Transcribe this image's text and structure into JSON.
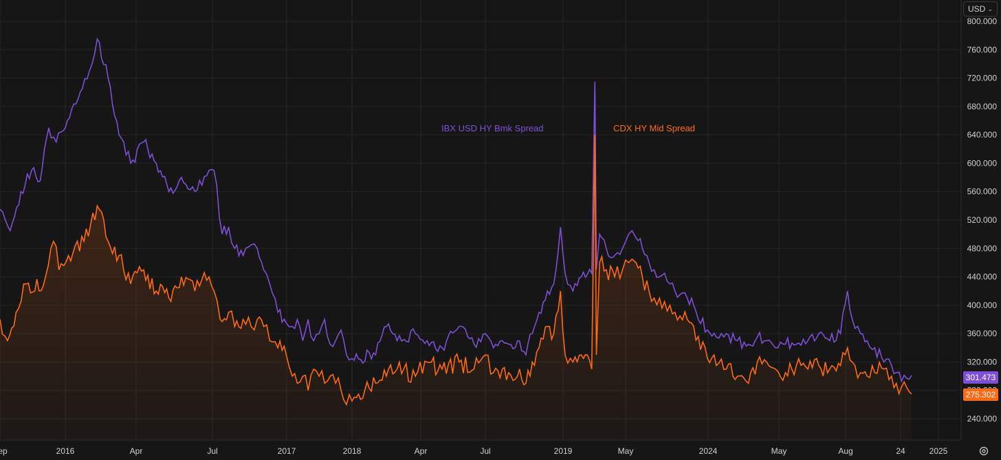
{
  "currency_selector": {
    "label": "USD",
    "icon": "chevron-down-icon"
  },
  "settings": {
    "icon": "gear-icon"
  },
  "colors": {
    "background": "#161616",
    "grid": "#262626",
    "ibx": "#7e4fd6",
    "cdx": "#ff6a13",
    "axis_text": "#d1d1d1"
  },
  "chart_data": {
    "type": "line",
    "title": "",
    "xlabel": "",
    "ylabel": "",
    "x_range": [
      "2015-09-01",
      "2025-01-01"
    ],
    "ylim": [
      210,
      830
    ],
    "y_ticks": [
      "240.000",
      "280.000",
      "320.000",
      "360.000",
      "400.000",
      "440.000",
      "480.000",
      "520.000",
      "560.000",
      "600.000",
      "640.000",
      "680.000",
      "720.000",
      "760.000",
      "800.000"
    ],
    "x_ticks": [
      {
        "date": "2015-09-01",
        "label": "Sep"
      },
      {
        "date": "2016-01-01",
        "label": "2016"
      },
      {
        "date": "2016-04-01",
        "label": "Apr"
      },
      {
        "date": "2016-07-01",
        "label": "Jul"
      },
      {
        "date": "2017-01-01",
        "label": "2017"
      },
      {
        "date": "2018-01-01",
        "label": "2018"
      },
      {
        "date": "2018-04-01",
        "label": "Apr"
      },
      {
        "date": "2018-07-01",
        "label": "Jul"
      },
      {
        "date": "2019-01-01",
        "label": "2019"
      },
      {
        "date": "2019-05-01",
        "label": "May"
      },
      {
        "date": "2024-01-01",
        "label": "2024"
      },
      {
        "date": "2024-05-01",
        "label": "May"
      },
      {
        "date": "2024-08-01",
        "label": "Aug"
      },
      {
        "date": "2024-11-24",
        "label": "24"
      },
      {
        "date": "2025-01-01",
        "label": "2025"
      }
    ],
    "series": [
      {
        "name": "IBX USD HY Bmk Spread",
        "color": "#7e4fd6",
        "last_value_label": "301.473",
        "points": [
          [
            "2015-09-01",
            535
          ],
          [
            "2015-09-20",
            505
          ],
          [
            "2015-10-10",
            560
          ],
          [
            "2015-10-30",
            590
          ],
          [
            "2015-11-15",
            575
          ],
          [
            "2015-12-01",
            650
          ],
          [
            "2015-12-15",
            630
          ],
          [
            "2016-01-01",
            650
          ],
          [
            "2016-01-20",
            700
          ],
          [
            "2016-02-01",
            730
          ],
          [
            "2016-02-11",
            775
          ],
          [
            "2016-02-25",
            720
          ],
          [
            "2016-03-10",
            640
          ],
          [
            "2016-03-25",
            600
          ],
          [
            "2016-04-10",
            630
          ],
          [
            "2016-04-25",
            600
          ],
          [
            "2016-05-10",
            560
          ],
          [
            "2016-05-25",
            580
          ],
          [
            "2016-06-10",
            560
          ],
          [
            "2016-06-27",
            590
          ],
          [
            "2016-07-05",
            590
          ],
          [
            "2016-07-25",
            500
          ],
          [
            "2016-08-10",
            510
          ],
          [
            "2016-08-25",
            480
          ],
          [
            "2016-09-15",
            470
          ],
          [
            "2016-10-05",
            485
          ],
          [
            "2016-10-20",
            480
          ],
          [
            "2016-11-05",
            450
          ],
          [
            "2016-11-20",
            430
          ],
          [
            "2016-12-10",
            390
          ],
          [
            "2016-12-31",
            375
          ],
          [
            "2017-02-01",
            370
          ],
          [
            "2017-03-01",
            380
          ],
          [
            "2017-04-01",
            350
          ],
          [
            "2017-05-01",
            380
          ],
          [
            "2017-06-01",
            350
          ],
          [
            "2017-07-01",
            360
          ],
          [
            "2017-08-01",
            380
          ],
          [
            "2017-09-01",
            345
          ],
          [
            "2017-10-01",
            350
          ],
          [
            "2017-11-01",
            365
          ],
          [
            "2017-12-01",
            330
          ],
          [
            "2018-01-01",
            325
          ],
          [
            "2018-02-01",
            330
          ],
          [
            "2018-02-15",
            370
          ],
          [
            "2018-03-01",
            350
          ],
          [
            "2018-03-25",
            360
          ],
          [
            "2018-04-10",
            350
          ],
          [
            "2018-05-01",
            340
          ],
          [
            "2018-05-25",
            370
          ],
          [
            "2018-06-15",
            345
          ],
          [
            "2018-07-01",
            360
          ],
          [
            "2018-07-20",
            340
          ],
          [
            "2018-08-10",
            350
          ],
          [
            "2018-08-25",
            345
          ],
          [
            "2018-09-15",
            350
          ],
          [
            "2018-10-05",
            330
          ],
          [
            "2018-10-20",
            360
          ],
          [
            "2018-11-05",
            390
          ],
          [
            "2018-11-25",
            420
          ],
          [
            "2018-12-10",
            430
          ],
          [
            "2018-12-26",
            510
          ],
          [
            "2019-01-05",
            445
          ],
          [
            "2019-01-20",
            420
          ],
          [
            "2019-02-05",
            440
          ],
          [
            "2019-02-25",
            445
          ],
          [
            "2019-03-03",
            715
          ],
          [
            "2019-03-06",
            450
          ],
          [
            "2019-03-12",
            500
          ],
          [
            "2019-03-25",
            480
          ],
          [
            "2019-04-10",
            470
          ],
          [
            "2019-04-25",
            480
          ],
          [
            "2019-05-10",
            500
          ],
          [
            "2019-05-20",
            505
          ],
          [
            "2019-06-01",
            495
          ],
          [
            "2019-06-20",
            480
          ],
          [
            "2019-07-10",
            460
          ],
          [
            "2019-07-25",
            450
          ],
          [
            "2019-08-10",
            440
          ],
          [
            "2019-08-25",
            445
          ],
          [
            "2019-09-10",
            430
          ],
          [
            "2019-09-25",
            420
          ],
          [
            "2019-10-10",
            415
          ],
          [
            "2019-11-01",
            410
          ],
          [
            "2019-11-20",
            400
          ],
          [
            "2019-12-31",
            365
          ],
          [
            "2024-01-15",
            355
          ],
          [
            "2024-02-01",
            360
          ],
          [
            "2024-02-20",
            350
          ],
          [
            "2024-03-10",
            345
          ],
          [
            "2024-03-25",
            355
          ],
          [
            "2024-04-10",
            350
          ],
          [
            "2024-04-25",
            340
          ],
          [
            "2024-05-10",
            345
          ],
          [
            "2024-05-25",
            345
          ],
          [
            "2024-06-10",
            350
          ],
          [
            "2024-06-25",
            360
          ],
          [
            "2024-07-10",
            350
          ],
          [
            "2024-07-25",
            360
          ],
          [
            "2024-08-05",
            420
          ],
          [
            "2024-08-15",
            380
          ],
          [
            "2024-09-01",
            360
          ],
          [
            "2024-09-15",
            350
          ],
          [
            "2024-10-01",
            340
          ],
          [
            "2024-10-20",
            320
          ],
          [
            "2024-11-05",
            315
          ],
          [
            "2024-11-15",
            305
          ],
          [
            "2024-11-25",
            293
          ],
          [
            "2024-12-05",
            301
          ]
        ]
      },
      {
        "name": "CDX HY Mid Spread",
        "color": "#ff6a13",
        "last_value_label": "275.302",
        "points": [
          [
            "2015-09-01",
            380
          ],
          [
            "2015-09-15",
            350
          ],
          [
            "2015-10-01",
            390
          ],
          [
            "2015-10-20",
            430
          ],
          [
            "2015-11-05",
            420
          ],
          [
            "2015-11-25",
            440
          ],
          [
            "2015-12-10",
            490
          ],
          [
            "2015-12-20",
            450
          ],
          [
            "2016-01-05",
            470
          ],
          [
            "2016-01-25",
            490
          ],
          [
            "2016-02-11",
            540
          ],
          [
            "2016-02-25",
            490
          ],
          [
            "2016-03-10",
            470
          ],
          [
            "2016-03-25",
            430
          ],
          [
            "2016-04-10",
            450
          ],
          [
            "2016-04-25",
            420
          ],
          [
            "2016-05-10",
            410
          ],
          [
            "2016-05-25",
            440
          ],
          [
            "2016-06-10",
            420
          ],
          [
            "2016-06-27",
            440
          ],
          [
            "2016-07-05",
            420
          ],
          [
            "2016-07-20",
            380
          ],
          [
            "2016-08-10",
            390
          ],
          [
            "2016-08-25",
            370
          ],
          [
            "2016-09-15",
            380
          ],
          [
            "2016-10-05",
            370
          ],
          [
            "2016-10-20",
            380
          ],
          [
            "2016-11-05",
            370
          ],
          [
            "2016-11-20",
            350
          ],
          [
            "2016-12-10",
            340
          ],
          [
            "2016-12-31",
            330
          ],
          [
            "2017-02-01",
            300
          ],
          [
            "2017-03-01",
            290
          ],
          [
            "2017-04-01",
            300
          ],
          [
            "2017-05-01",
            280
          ],
          [
            "2017-06-01",
            310
          ],
          [
            "2017-07-01",
            300
          ],
          [
            "2017-08-01",
            290
          ],
          [
            "2017-09-01",
            300
          ],
          [
            "2017-10-01",
            290
          ],
          [
            "2017-11-01",
            280
          ],
          [
            "2017-12-01",
            260
          ],
          [
            "2018-01-01",
            265
          ],
          [
            "2018-02-01",
            290
          ],
          [
            "2018-02-15",
            300
          ],
          [
            "2018-03-01",
            310
          ],
          [
            "2018-03-25",
            300
          ],
          [
            "2018-04-10",
            320
          ],
          [
            "2018-05-01",
            310
          ],
          [
            "2018-05-25",
            320
          ],
          [
            "2018-06-15",
            310
          ],
          [
            "2018-07-01",
            330
          ],
          [
            "2018-07-20",
            305
          ],
          [
            "2018-08-10",
            310
          ],
          [
            "2018-08-25",
            305
          ],
          [
            "2018-09-15",
            300
          ],
          [
            "2018-10-05",
            290
          ],
          [
            "2018-10-20",
            320
          ],
          [
            "2018-11-05",
            340
          ],
          [
            "2018-11-25",
            370
          ],
          [
            "2018-12-10",
            360
          ],
          [
            "2018-12-26",
            420
          ],
          [
            "2019-01-05",
            330
          ],
          [
            "2019-01-20",
            320
          ],
          [
            "2019-02-05",
            330
          ],
          [
            "2019-02-25",
            310
          ],
          [
            "2019-03-03",
            640
          ],
          [
            "2019-03-06",
            330
          ],
          [
            "2019-03-12",
            460
          ],
          [
            "2019-03-25",
            450
          ],
          [
            "2019-04-10",
            440
          ],
          [
            "2019-04-25",
            450
          ],
          [
            "2019-05-10",
            460
          ],
          [
            "2019-05-20",
            465
          ],
          [
            "2019-06-01",
            460
          ],
          [
            "2019-06-20",
            440
          ],
          [
            "2019-07-10",
            420
          ],
          [
            "2019-07-25",
            410
          ],
          [
            "2019-08-10",
            410
          ],
          [
            "2019-08-25",
            405
          ],
          [
            "2019-09-10",
            400
          ],
          [
            "2019-09-25",
            390
          ],
          [
            "2019-10-10",
            385
          ],
          [
            "2019-11-01",
            380
          ],
          [
            "2019-11-20",
            370
          ],
          [
            "2019-12-31",
            325
          ],
          [
            "2024-01-15",
            315
          ],
          [
            "2024-02-01",
            310
          ],
          [
            "2024-02-20",
            300
          ],
          [
            "2024-03-10",
            290
          ],
          [
            "2024-03-25",
            320
          ],
          [
            "2024-04-10",
            320
          ],
          [
            "2024-04-25",
            310
          ],
          [
            "2024-05-10",
            305
          ],
          [
            "2024-05-25",
            315
          ],
          [
            "2024-06-10",
            310
          ],
          [
            "2024-06-25",
            315
          ],
          [
            "2024-07-10",
            310
          ],
          [
            "2024-07-25",
            315
          ],
          [
            "2024-08-05",
            340
          ],
          [
            "2024-08-15",
            320
          ],
          [
            "2024-09-01",
            305
          ],
          [
            "2024-09-15",
            300
          ],
          [
            "2024-10-01",
            305
          ],
          [
            "2024-10-20",
            310
          ],
          [
            "2024-11-05",
            300
          ],
          [
            "2024-11-15",
            290
          ],
          [
            "2024-11-25",
            285
          ],
          [
            "2024-12-05",
            275
          ]
        ]
      }
    ]
  }
}
